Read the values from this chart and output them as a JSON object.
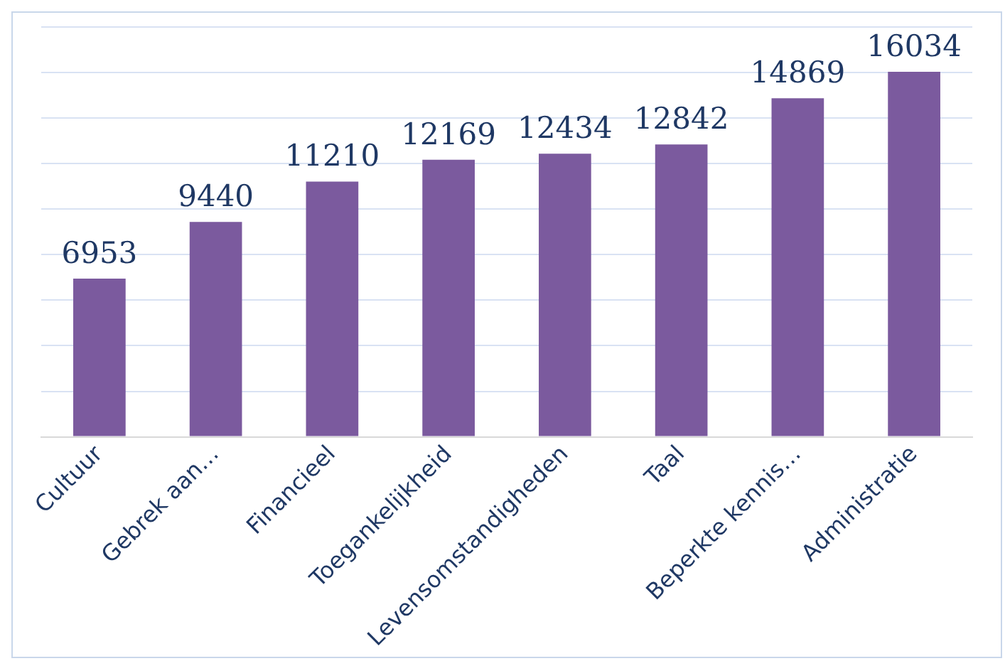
{
  "chart_data": {
    "type": "bar",
    "categories": [
      "Cultuur",
      "Gebrek aan…",
      "Financieel",
      "Toegankelijkheid",
      "Levensomstandigheden",
      "Taal",
      "Beperkte kennis…",
      "Administratie"
    ],
    "values": [
      6953,
      9440,
      11210,
      12169,
      12434,
      12842,
      14869,
      16034
    ],
    "color": "#7b5a9e",
    "ylim": [
      0,
      18000
    ],
    "yticks": [
      {
        "value": 0,
        "label": null
      },
      {
        "value": 2000,
        "label": null
      },
      {
        "value": 4000,
        "label": null
      },
      {
        "value": 6000,
        "label": null
      },
      {
        "value": 8000,
        "label": null
      },
      {
        "value": 10000,
        "label": null
      },
      {
        "value": 12000,
        "label": null
      },
      {
        "value": 14000,
        "label": null
      },
      {
        "value": 16000,
        "label": null
      },
      {
        "value": 18000,
        "label": null
      }
    ],
    "grid": "y",
    "tick_labels": "x",
    "data_labels": true,
    "legend": false
  }
}
